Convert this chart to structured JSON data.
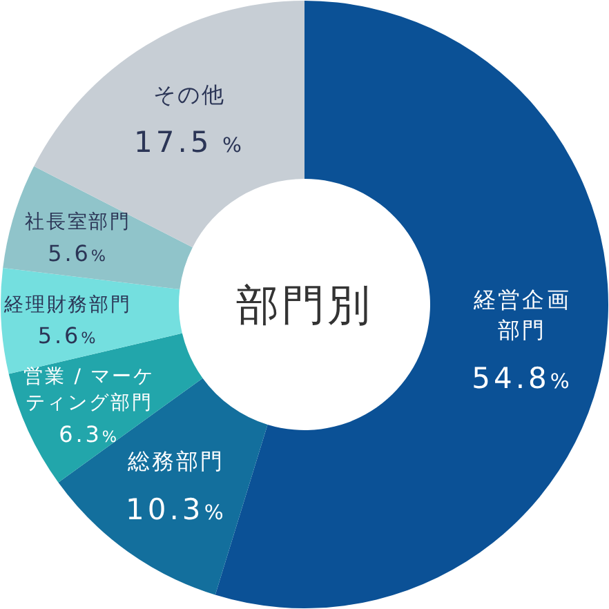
{
  "chart_data": {
    "type": "donut",
    "title": "部門別",
    "categories": [
      "経営企画部門",
      "総務部門",
      "営業 / マーケティング部門",
      "経理財務部門",
      "社長室部門",
      "その他"
    ],
    "values": [
      54.8,
      10.3,
      6.3,
      5.6,
      5.6,
      17.5
    ],
    "colors": [
      "#0b5196",
      "#136f9d",
      "#22a6ab",
      "#74dfdf",
      "#90c4ca",
      "#c7ced5"
    ],
    "value_labels": [
      "54.8%",
      "10.3%",
      "6.3%",
      "5.6%",
      "5.6%",
      "17.5 %"
    ]
  }
}
